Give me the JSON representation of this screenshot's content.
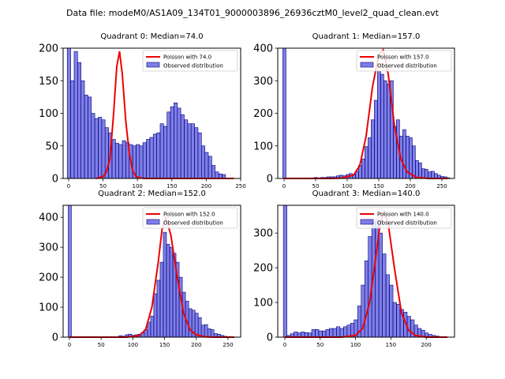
{
  "figure": {
    "title": "Data file: modeM0/AS1A09_134T01_9000003896_26936cztM0_level2_quad_clean.evt"
  },
  "colors": {
    "bars": "#0000cd",
    "poisson": "#ee0000"
  },
  "chart_data": [
    {
      "type": "bar",
      "title": "Quadrant 0: Median=74.0",
      "median": 74.0,
      "xlim": [
        -8,
        250
      ],
      "ylim": [
        0,
        200
      ],
      "xticks": [
        0,
        50,
        100,
        150,
        200,
        250
      ],
      "yticks": [
        0,
        50,
        100,
        150,
        200
      ],
      "legend": {
        "line": "Poisson with 74.0",
        "bars": "Observed distribution",
        "position": "top-right"
      },
      "bin_start": -2,
      "bin_width": 5,
      "values": [
        200,
        150,
        195,
        178,
        150,
        128,
        125,
        100,
        92,
        94,
        90,
        78,
        70,
        60,
        54,
        52,
        58,
        55,
        52,
        50,
        52,
        50,
        55,
        60,
        63,
        68,
        70,
        84,
        80,
        102,
        110,
        116,
        108,
        98,
        90,
        84,
        84,
        78,
        70,
        50,
        40,
        34,
        20,
        10,
        7,
        6
      ],
      "poisson_x": [
        40,
        50,
        55,
        60,
        65,
        70,
        74,
        78,
        83,
        88,
        93,
        98,
        103,
        110,
        240
      ],
      "poisson_y": [
        0,
        3,
        10,
        30,
        95,
        172,
        195,
        160,
        88,
        40,
        12,
        3,
        1,
        0,
        0
      ]
    },
    {
      "type": "bar",
      "title": "Quadrant 1: Median=157.0",
      "median": 157.0,
      "xlim": [
        -10,
        270
      ],
      "ylim": [
        0,
        400
      ],
      "xticks": [
        0,
        50,
        100,
        150,
        200,
        250
      ],
      "yticks": [
        0,
        100,
        200,
        300,
        400
      ],
      "legend": {
        "line": "Poisson with 157.0",
        "bars": "Observed distribution",
        "position": "top-right"
      },
      "bin_start": -2,
      "bin_width": 5,
      "values": [
        400,
        0,
        0,
        0,
        0,
        0,
        0,
        0,
        1,
        2,
        3,
        2,
        3,
        3,
        5,
        5,
        5,
        8,
        10,
        8,
        12,
        15,
        12,
        22,
        40,
        60,
        98,
        125,
        180,
        240,
        330,
        320,
        300,
        290,
        300,
        160,
        180,
        130,
        150,
        130,
        125,
        100,
        55,
        48,
        30,
        28,
        20,
        22,
        15,
        10,
        6,
        5,
        2
      ],
      "poisson_x": [
        0,
        70,
        90,
        110,
        120,
        130,
        140,
        150,
        157,
        165,
        175,
        185,
        195,
        210,
        230,
        260
      ],
      "poisson_y": [
        0,
        0,
        1,
        10,
        40,
        130,
        280,
        380,
        395,
        320,
        160,
        60,
        20,
        3,
        0,
        0
      ]
    },
    {
      "type": "bar",
      "title": "Quadrant 2: Median=152.0",
      "median": 152.0,
      "xlim": [
        -10,
        270
      ],
      "ylim": [
        0,
        440
      ],
      "xticks": [
        0,
        50,
        100,
        150,
        200,
        250
      ],
      "yticks": [
        0,
        100,
        200,
        300,
        400
      ],
      "legend": {
        "line": "Poisson with 152.0",
        "bars": "Observed distribution",
        "position": "top-right"
      },
      "bin_start": -2,
      "bin_width": 5,
      "values": [
        440,
        0,
        0,
        0,
        0,
        0,
        0,
        0,
        0,
        0,
        0,
        0,
        0,
        0,
        0,
        0,
        5,
        3,
        8,
        10,
        6,
        8,
        10,
        15,
        25,
        50,
        70,
        145,
        190,
        250,
        350,
        310,
        300,
        280,
        250,
        200,
        150,
        120,
        95,
        90,
        80,
        65,
        40,
        42,
        28,
        25,
        12,
        10,
        6,
        3,
        2,
        0,
        0
      ],
      "poisson_x": [
        0,
        90,
        110,
        120,
        130,
        140,
        146,
        152,
        160,
        170,
        180,
        190,
        200,
        215,
        230,
        260
      ],
      "poisson_y": [
        0,
        0,
        5,
        25,
        100,
        250,
        360,
        400,
        340,
        200,
        80,
        25,
        8,
        1,
        0,
        0
      ]
    },
    {
      "type": "bar",
      "title": "Quadrant 3: Median=140.0",
      "median": 140.0,
      "xlim": [
        -10,
        240
      ],
      "ylim": [
        0,
        380
      ],
      "xticks": [
        0,
        50,
        100,
        150,
        200
      ],
      "yticks": [
        0,
        100,
        200,
        300
      ],
      "legend": {
        "line": "Poisson with 140.0",
        "bars": "Observed distribution",
        "position": "top-right"
      },
      "bin_start": -2,
      "bin_width": 5,
      "values": [
        380,
        5,
        10,
        15,
        12,
        15,
        13,
        12,
        22,
        22,
        18,
        18,
        22,
        25,
        25,
        30,
        25,
        30,
        35,
        40,
        50,
        90,
        150,
        220,
        290,
        330,
        340,
        300,
        240,
        180,
        150,
        100,
        95,
        80,
        72,
        60,
        50,
        35,
        25,
        20,
        12,
        8,
        5,
        3
      ],
      "poisson_x": [
        0,
        80,
        100,
        110,
        120,
        130,
        135,
        140,
        146,
        155,
        165,
        175,
        185,
        200,
        230
      ],
      "poisson_y": [
        0,
        0,
        5,
        25,
        100,
        250,
        330,
        360,
        330,
        200,
        70,
        20,
        5,
        0,
        0
      ]
    }
  ]
}
